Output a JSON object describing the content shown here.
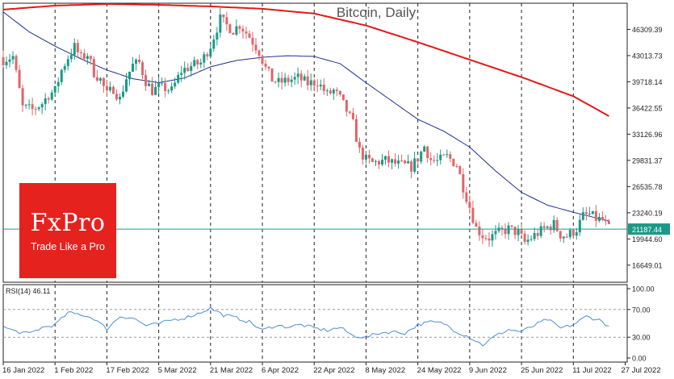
{
  "chart_data": {
    "type": "candlestick",
    "title": "Bitcoin, Daily",
    "y_ticks": [
      46309.39,
      43013.73,
      39718.14,
      36422.55,
      33126.96,
      29831.37,
      26535.78,
      23240.19,
      19944.6,
      16649.01
    ],
    "ylim": [
      14500,
      49600
    ],
    "current_price_label": "21187.44",
    "current_price": 21187.44,
    "x_ticks": [
      "16 Jan 2022",
      "1 Feb 2022",
      "17 Feb 2022",
      "5 Mar 2022",
      "21 Mar 2022",
      "6 Apr 2022",
      "22 Apr 2022",
      "8 May 2022",
      "24 May 2022",
      "9 Jun 2022",
      "25 Jun 2022",
      "11 Jul 2022",
      "27 Jul 2022"
    ],
    "x_day_index": [
      0,
      16,
      32,
      48,
      64,
      80,
      96,
      112,
      128,
      144,
      160,
      176,
      192
    ],
    "close_anchors": [
      [
        0,
        42500
      ],
      [
        3,
        42900
      ],
      [
        6,
        36500
      ],
      [
        9,
        36200
      ],
      [
        12,
        37000
      ],
      [
        14,
        38100
      ],
      [
        16,
        38600
      ],
      [
        18,
        41200
      ],
      [
        20,
        42800
      ],
      [
        22,
        44100
      ],
      [
        24,
        42700
      ],
      [
        26,
        43200
      ],
      [
        28,
        40900
      ],
      [
        30,
        40000
      ],
      [
        32,
        38100
      ],
      [
        34,
        38900
      ],
      [
        36,
        37500
      ],
      [
        38,
        40200
      ],
      [
        40,
        41800
      ],
      [
        42,
        42100
      ],
      [
        44,
        39800
      ],
      [
        46,
        38600
      ],
      [
        48,
        39000
      ],
      [
        50,
        38900
      ],
      [
        52,
        38600
      ],
      [
        55,
        41100
      ],
      [
        58,
        41700
      ],
      [
        61,
        42100
      ],
      [
        64,
        44300
      ],
      [
        67,
        47600
      ],
      [
        69,
        46800
      ],
      [
        71,
        46200
      ],
      [
        73,
        46900
      ],
      [
        76,
        45400
      ],
      [
        79,
        43500
      ],
      [
        81,
        41400
      ],
      [
        83,
        40000
      ],
      [
        85,
        39600
      ],
      [
        88,
        39900
      ],
      [
        91,
        40200
      ],
      [
        94,
        39500
      ],
      [
        97,
        39700
      ],
      [
        100,
        38100
      ],
      [
        102,
        38600
      ],
      [
        104,
        37600
      ],
      [
        106,
        36100
      ],
      [
        108,
        34400
      ],
      [
        110,
        31000
      ],
      [
        112,
        29900
      ],
      [
        114,
        29500
      ],
      [
        118,
        29800
      ],
      [
        122,
        29300
      ],
      [
        126,
        29000
      ],
      [
        128,
        30100
      ],
      [
        130,
        31600
      ],
      [
        132,
        29900
      ],
      [
        134,
        29700
      ],
      [
        137,
        30300
      ],
      [
        140,
        29300
      ],
      [
        142,
        26500
      ],
      [
        144,
        24000
      ],
      [
        146,
        21300
      ],
      [
        148,
        20400
      ],
      [
        150,
        20100
      ],
      [
        153,
        20700
      ],
      [
        156,
        21200
      ],
      [
        159,
        20700
      ],
      [
        161,
        19500
      ],
      [
        164,
        20400
      ],
      [
        167,
        21200
      ],
      [
        170,
        21800
      ],
      [
        172,
        20500
      ],
      [
        174,
        20300
      ],
      [
        177,
        21200
      ],
      [
        179,
        22800
      ],
      [
        181,
        23000
      ],
      [
        183,
        22500
      ],
      [
        185,
        22300
      ],
      [
        187,
        21187
      ]
    ],
    "ma_medium_anchors": [
      [
        0,
        48500
      ],
      [
        8,
        46000
      ],
      [
        16,
        44200
      ],
      [
        24,
        42600
      ],
      [
        32,
        41200
      ],
      [
        40,
        40100
      ],
      [
        48,
        39600
      ],
      [
        56,
        40200
      ],
      [
        64,
        41600
      ],
      [
        72,
        42400
      ],
      [
        80,
        42800
      ],
      [
        88,
        43000
      ],
      [
        96,
        42900
      ],
      [
        104,
        42000
      ],
      [
        112,
        39600
      ],
      [
        120,
        37300
      ],
      [
        128,
        35000
      ],
      [
        136,
        33500
      ],
      [
        144,
        31500
      ],
      [
        152,
        28500
      ],
      [
        160,
        25800
      ],
      [
        168,
        24200
      ],
      [
        176,
        23300
      ],
      [
        187,
        22200
      ]
    ],
    "ma_long_anchors": [
      [
        0,
        48800
      ],
      [
        16,
        49300
      ],
      [
        32,
        49500
      ],
      [
        48,
        49400
      ],
      [
        64,
        49200
      ],
      [
        80,
        48900
      ],
      [
        96,
        48300
      ],
      [
        112,
        46800
      ],
      [
        128,
        44700
      ],
      [
        144,
        42500
      ],
      [
        160,
        40300
      ],
      [
        176,
        37900
      ],
      [
        187,
        35400
      ]
    ],
    "rsi": {
      "label": "RSI(14) 46.11",
      "value": 46.11,
      "levels": [
        30,
        70
      ],
      "y_ticks": [
        "100.00",
        "70.00",
        "30.00",
        "0.00"
      ],
      "anchors": [
        [
          0,
          45
        ],
        [
          4,
          38
        ],
        [
          8,
          35
        ],
        [
          12,
          44
        ],
        [
          16,
          48
        ],
        [
          20,
          65
        ],
        [
          24,
          63
        ],
        [
          28,
          57
        ],
        [
          32,
          42
        ],
        [
          36,
          60
        ],
        [
          40,
          58
        ],
        [
          44,
          47
        ],
        [
          48,
          49
        ],
        [
          52,
          55
        ],
        [
          56,
          58
        ],
        [
          60,
          64
        ],
        [
          64,
          72
        ],
        [
          68,
          62
        ],
        [
          72,
          58
        ],
        [
          76,
          52
        ],
        [
          80,
          40
        ],
        [
          84,
          47
        ],
        [
          88,
          45
        ],
        [
          92,
          48
        ],
        [
          96,
          43
        ],
        [
          100,
          40
        ],
        [
          104,
          44
        ],
        [
          108,
          32
        ],
        [
          112,
          30
        ],
        [
          116,
          36
        ],
        [
          120,
          38
        ],
        [
          124,
          36
        ],
        [
          128,
          48
        ],
        [
          132,
          52
        ],
        [
          136,
          50
        ],
        [
          140,
          38
        ],
        [
          144,
          30
        ],
        [
          148,
          19
        ],
        [
          152,
          32
        ],
        [
          156,
          41
        ],
        [
          160,
          38
        ],
        [
          164,
          47
        ],
        [
          168,
          56
        ],
        [
          172,
          43
        ],
        [
          176,
          48
        ],
        [
          180,
          60
        ],
        [
          184,
          55
        ],
        [
          187,
          46
        ]
      ]
    }
  },
  "logo": {
    "brand": "FxPro",
    "slogan": "Trade Like a Pro"
  },
  "colors": {
    "bull": "#1a9a86",
    "bear": "#e0666a",
    "ma_medium": "#1f2f8f",
    "ma_long": "#e01a1a",
    "price_line": "#1a9a86",
    "rsi_line": "#4a90d6",
    "brand_bg": "#e6221e"
  }
}
